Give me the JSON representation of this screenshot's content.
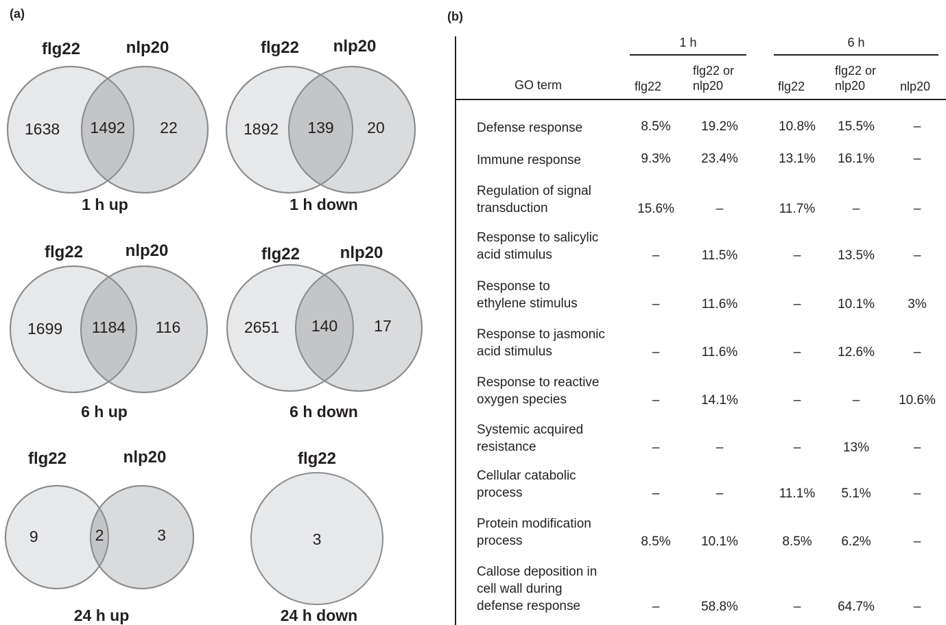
{
  "panel_a": {
    "label": "(a)",
    "venns": [
      {
        "left_label": "flg22",
        "right_label": "nlp20",
        "left_only": "1638",
        "overlap": "1492",
        "right_only": "22",
        "caption": "1 h up"
      },
      {
        "left_label": "flg22",
        "right_label": "nlp20",
        "left_only": "1892",
        "overlap": "139",
        "right_only": "20",
        "caption": "1 h down"
      },
      {
        "left_label": "flg22",
        "right_label": "nlp20",
        "left_only": "1699",
        "overlap": "1184",
        "right_only": "116",
        "caption": "6 h up"
      },
      {
        "left_label": "flg22",
        "right_label": "nlp20",
        "left_only": "2651",
        "overlap": "140",
        "right_only": "17",
        "caption": "6 h down"
      },
      {
        "left_label": "flg22",
        "right_label": "nlp20",
        "left_only": "9",
        "overlap": "2",
        "right_only": "3",
        "caption": "24 h up"
      },
      {
        "left_label": "flg22",
        "only": "3",
        "caption": "24 h down"
      }
    ]
  },
  "panel_b": {
    "label": "(b)",
    "groups": [
      "1 h",
      "6 h"
    ],
    "columns": {
      "term": "GO term",
      "c1": "flg22",
      "c2": "flg22 or\nnlp20",
      "c3": "flg22",
      "c4": "flg22 or\nnlp20",
      "c5": "nlp20"
    },
    "rows": [
      {
        "term": "Defense response",
        "values": [
          "8.5%",
          "19.2%",
          "10.8%",
          "15.5%",
          "–"
        ]
      },
      {
        "term": "Immune response",
        "values": [
          "9.3%",
          "23.4%",
          "13.1%",
          "16.1%",
          "–"
        ]
      },
      {
        "term": "Regulation of signal\ntransduction",
        "values": [
          "15.6%",
          "–",
          "11.7%",
          "–",
          "–"
        ]
      },
      {
        "term": "Response to salicylic\nacid stimulus",
        "values": [
          "–",
          "11.5%",
          "–",
          "13.5%",
          "–"
        ]
      },
      {
        "term": "Response to\nethylene stimulus",
        "values": [
          "–",
          "11.6%",
          "–",
          "10.1%",
          "3%"
        ]
      },
      {
        "term": "Response to jasmonic\nacid stimulus",
        "values": [
          "–",
          "11.6%",
          "–",
          "12.6%",
          "–"
        ]
      },
      {
        "term": "Response to reactive\noxygen species",
        "values": [
          "–",
          "14.1%",
          "–",
          "–",
          "10.6%"
        ]
      },
      {
        "term": "Systemic acquired\nresistance",
        "values": [
          "–",
          "–",
          "–",
          "13%",
          "–"
        ]
      },
      {
        "term": "Cellular catabolic\nprocess",
        "values": [
          "–",
          "–",
          "11.1%",
          "5.1%",
          "–"
        ]
      },
      {
        "term": "Protein modification\nprocess",
        "values": [
          "8.5%",
          "10.1%",
          "8.5%",
          "6.2%",
          "–"
        ]
      },
      {
        "term": "Callose deposition in\ncell wall during\ndefense response",
        "values": [
          "–",
          "58.8%",
          "–",
          "64.7%",
          "–"
        ]
      }
    ]
  }
}
